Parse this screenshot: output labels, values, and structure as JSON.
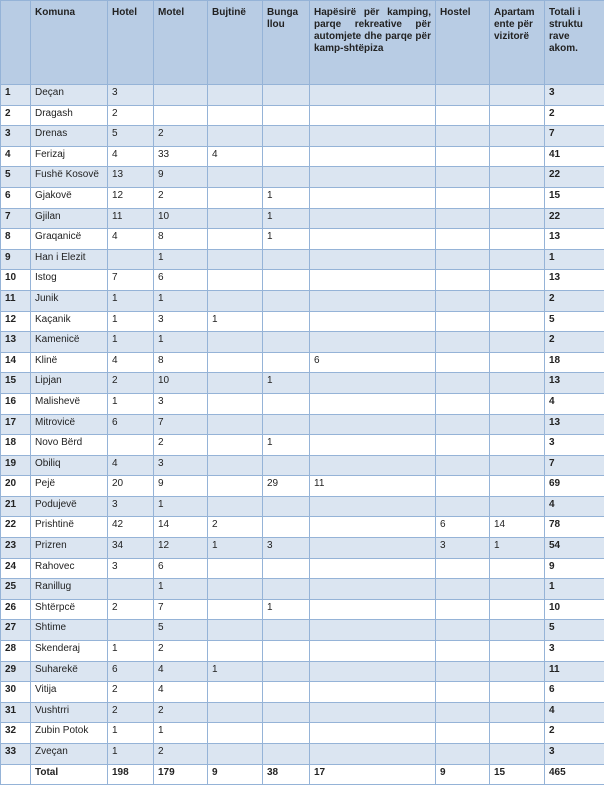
{
  "headers": [
    "",
    "Komuna",
    "Hotel",
    "Motel",
    "Bujtinë",
    "Bunga llou",
    "Hapësirë për kamping, parqe rekreative për automjete dhe parqe për kamp-shtëpiza",
    "Hostel",
    "Apartam ente për vizitorë",
    "Totali i struktu rave akom."
  ],
  "rows": [
    [
      "1",
      "Deçan",
      "3",
      "",
      "",
      "",
      "",
      "",
      "",
      "3"
    ],
    [
      "2",
      "Dragash",
      "2",
      "",
      "",
      "",
      "",
      "",
      "",
      "2"
    ],
    [
      "3",
      "Drenas",
      "5",
      "2",
      "",
      "",
      "",
      "",
      "",
      "7"
    ],
    [
      "4",
      "Ferizaj",
      "4",
      "33",
      "4",
      "",
      "",
      "",
      "",
      "41"
    ],
    [
      "5",
      "Fushë Kosovë",
      "13",
      "9",
      "",
      "",
      "",
      "",
      "",
      "22"
    ],
    [
      "6",
      "Gjakovë",
      "12",
      "2",
      "",
      "1",
      "",
      "",
      "",
      "15"
    ],
    [
      "7",
      "Gjilan",
      "11",
      "10",
      "",
      "1",
      "",
      "",
      "",
      "22"
    ],
    [
      "8",
      "Graqanicë",
      "4",
      "8",
      "",
      "1",
      "",
      "",
      "",
      "13"
    ],
    [
      "9",
      "Han i Elezit",
      "",
      "1",
      "",
      "",
      "",
      "",
      "",
      "1"
    ],
    [
      "10",
      "Istog",
      "7",
      "6",
      "",
      "",
      "",
      "",
      "",
      "13"
    ],
    [
      "11",
      "Junik",
      "1",
      "1",
      "",
      "",
      "",
      "",
      "",
      "2"
    ],
    [
      "12",
      "Kaçanik",
      "1",
      "3",
      "1",
      "",
      "",
      "",
      "",
      "5"
    ],
    [
      "13",
      "Kamenicë",
      "1",
      "1",
      "",
      "",
      "",
      "",
      "",
      "2"
    ],
    [
      "14",
      "Klinë",
      "4",
      "8",
      "",
      "",
      "6",
      "",
      "",
      "18"
    ],
    [
      "15",
      "Lipjan",
      "2",
      "10",
      "",
      "1",
      "",
      "",
      "",
      "13"
    ],
    [
      "16",
      "Malishevë",
      "1",
      "3",
      "",
      "",
      "",
      "",
      "",
      "4"
    ],
    [
      "17",
      "Mitrovicë",
      "6",
      "7",
      "",
      "",
      "",
      "",
      "",
      "13"
    ],
    [
      "18",
      "Novo Bërd",
      "",
      "2",
      "",
      "1",
      "",
      "",
      "",
      "3"
    ],
    [
      "19",
      "Obiliq",
      "4",
      "3",
      "",
      "",
      "",
      "",
      "",
      "7"
    ],
    [
      "20",
      "Pejë",
      "20",
      "9",
      "",
      "29",
      "11",
      "",
      "",
      "69"
    ],
    [
      "21",
      "Podujevë",
      "3",
      "1",
      "",
      "",
      "",
      "",
      "",
      "4"
    ],
    [
      "22",
      "Prishtinë",
      "42",
      "14",
      "2",
      "",
      "",
      "6",
      "14",
      "78"
    ],
    [
      "23",
      "Prizren",
      "34",
      "12",
      "1",
      "3",
      "",
      "3",
      "1",
      "54"
    ],
    [
      "24",
      "Rahovec",
      "3",
      "6",
      "",
      "",
      "",
      "",
      "",
      "9"
    ],
    [
      "25",
      "Ranillug",
      "",
      "1",
      "",
      "",
      "",
      "",
      "",
      "1"
    ],
    [
      "26",
      "Shtërpcë",
      "2",
      "7",
      "",
      "1",
      "",
      "",
      "",
      "10"
    ],
    [
      "27",
      "Shtime",
      "",
      "5",
      "",
      "",
      "",
      "",
      "",
      "5"
    ],
    [
      "28",
      "Skenderaj",
      "1",
      "2",
      "",
      "",
      "",
      "",
      "",
      "3"
    ],
    [
      "29",
      "Suharekë",
      "6",
      "4",
      "1",
      "",
      "",
      "",
      "",
      "11"
    ],
    [
      "30",
      "Vitija",
      "2",
      "4",
      "",
      "",
      "",
      "",
      "",
      "6"
    ],
    [
      "31",
      "Vushtrri",
      "2",
      "2",
      "",
      "",
      "",
      "",
      "",
      "4"
    ],
    [
      "32",
      "Zubin Potok",
      "1",
      "1",
      "",
      "",
      "",
      "",
      "",
      "2"
    ],
    [
      "33",
      "Zveçan",
      "1",
      "2",
      "",
      "",
      "",
      "",
      "",
      "3"
    ],
    [
      "",
      "Total",
      "198",
      "179",
      "9",
      "38",
      "17",
      "9",
      "15",
      "465"
    ]
  ]
}
